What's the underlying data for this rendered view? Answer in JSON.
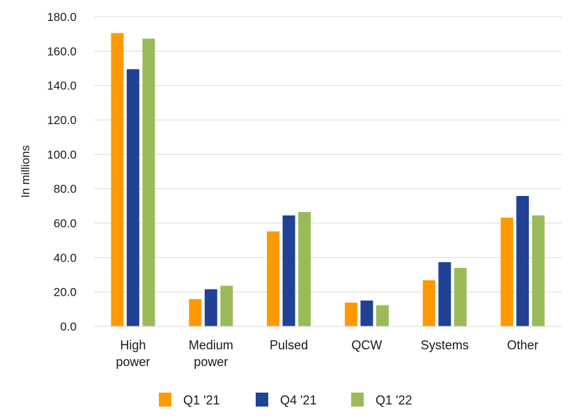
{
  "chart_data": {
    "type": "bar",
    "title": "",
    "xlabel": "",
    "ylabel": "In millions",
    "ylim": [
      0,
      180
    ],
    "yticks": [
      "0.0",
      "20.0",
      "40.0",
      "60.0",
      "80.0",
      "100.0",
      "120.0",
      "140.0",
      "160.0",
      "180.0"
    ],
    "grid": true,
    "legend_position": "bottom",
    "categories": [
      [
        "High",
        "power"
      ],
      [
        "Medium",
        "power"
      ],
      [
        "Pulsed"
      ],
      [
        "QCW"
      ],
      [
        "Systems"
      ],
      [
        "Other"
      ]
    ],
    "series": [
      {
        "name": "Q1 '21",
        "color": "#FF9900",
        "values": [
          170.5,
          15.8,
          55.2,
          13.8,
          26.8,
          63.2
        ]
      },
      {
        "name": "Q4 '21",
        "color": "#214294",
        "values": [
          149.5,
          21.6,
          64.5,
          15.0,
          37.3,
          75.8
        ]
      },
      {
        "name": "Q1 '22",
        "color": "#9BBB59",
        "values": [
          167.3,
          23.6,
          66.5,
          12.3,
          34.0,
          64.5
        ]
      }
    ]
  }
}
